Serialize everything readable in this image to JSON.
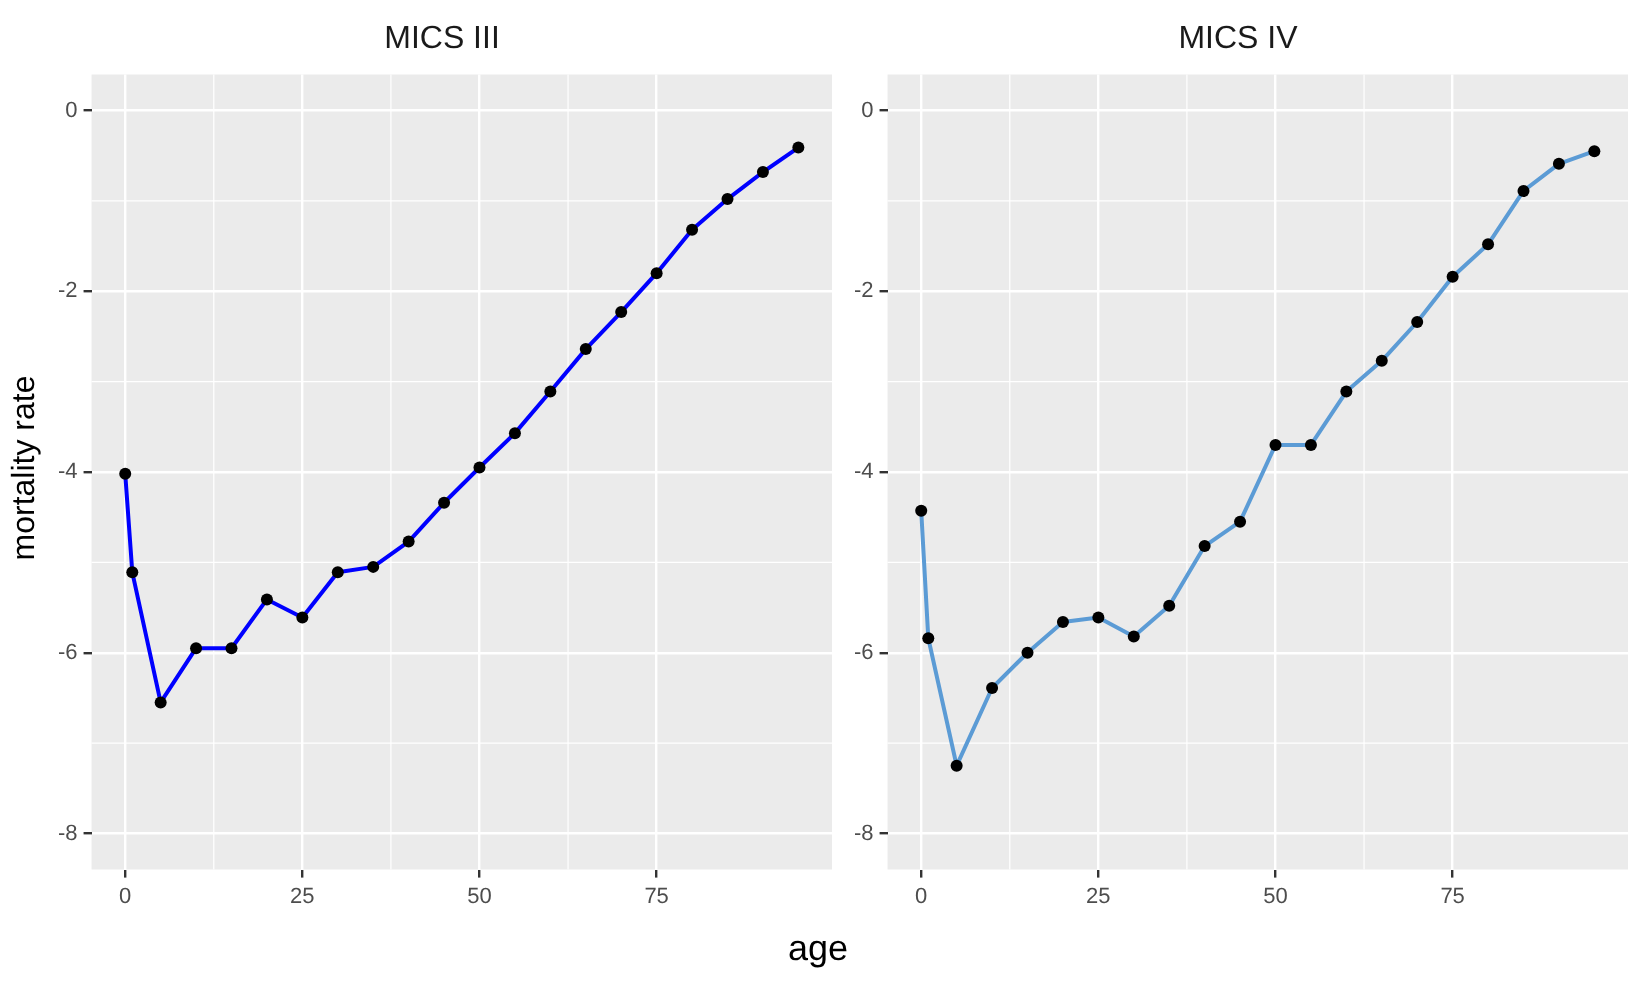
{
  "chart_data": [
    {
      "type": "line",
      "title": "MICS III",
      "xlabel": "age",
      "ylabel": "mortality rate",
      "x": [
        0,
        1,
        5,
        10,
        15,
        20,
        25,
        30,
        35,
        40,
        45,
        50,
        55,
        60,
        65,
        70,
        75,
        80,
        85,
        90,
        95
      ],
      "series": [
        {
          "color": "#0000ff",
          "values": [
            -4.02,
            -5.11,
            -6.55,
            -5.95,
            -5.95,
            -5.41,
            -5.61,
            -5.11,
            -5.05,
            -4.77,
            -4.34,
            -3.95,
            -3.57,
            -3.11,
            -2.64,
            -2.23,
            -1.8,
            -1.32,
            -0.98,
            -0.68,
            -0.41
          ]
        }
      ],
      "xlim": [
        -4.75,
        99.75
      ],
      "xticks": [
        0,
        25,
        50,
        75
      ],
      "ylim": [
        -8.4,
        0.4
      ],
      "yticks": [
        -8,
        -6,
        -4,
        -2,
        0
      ],
      "grid": true,
      "legend": false,
      "marker": "circle",
      "line_style": "solid"
    },
    {
      "type": "line",
      "title": "MICS IV",
      "x": [
        0,
        1,
        5,
        10,
        15,
        20,
        25,
        30,
        35,
        40,
        45,
        50,
        55,
        60,
        65,
        70,
        75,
        80,
        85,
        90,
        95
      ],
      "series": [
        {
          "color": "#5b9bd5",
          "values": [
            -4.43,
            -5.84,
            -7.25,
            -6.39,
            -6.0,
            -5.66,
            -5.61,
            -5.82,
            -5.48,
            -4.82,
            -4.55,
            -3.7,
            -3.7,
            -3.11,
            -2.77,
            -2.34,
            -1.84,
            -1.48,
            -0.89,
            -0.59,
            -0.45
          ]
        }
      ],
      "xlim": [
        -4.75,
        99.75
      ],
      "xticks": [
        0,
        25,
        50,
        75
      ],
      "ylim": [
        -8.4,
        0.4
      ],
      "yticks": [
        -8,
        -6,
        -4,
        -2,
        0
      ],
      "grid": true,
      "legend": false,
      "marker": "circle",
      "line_style": "solid"
    }
  ]
}
